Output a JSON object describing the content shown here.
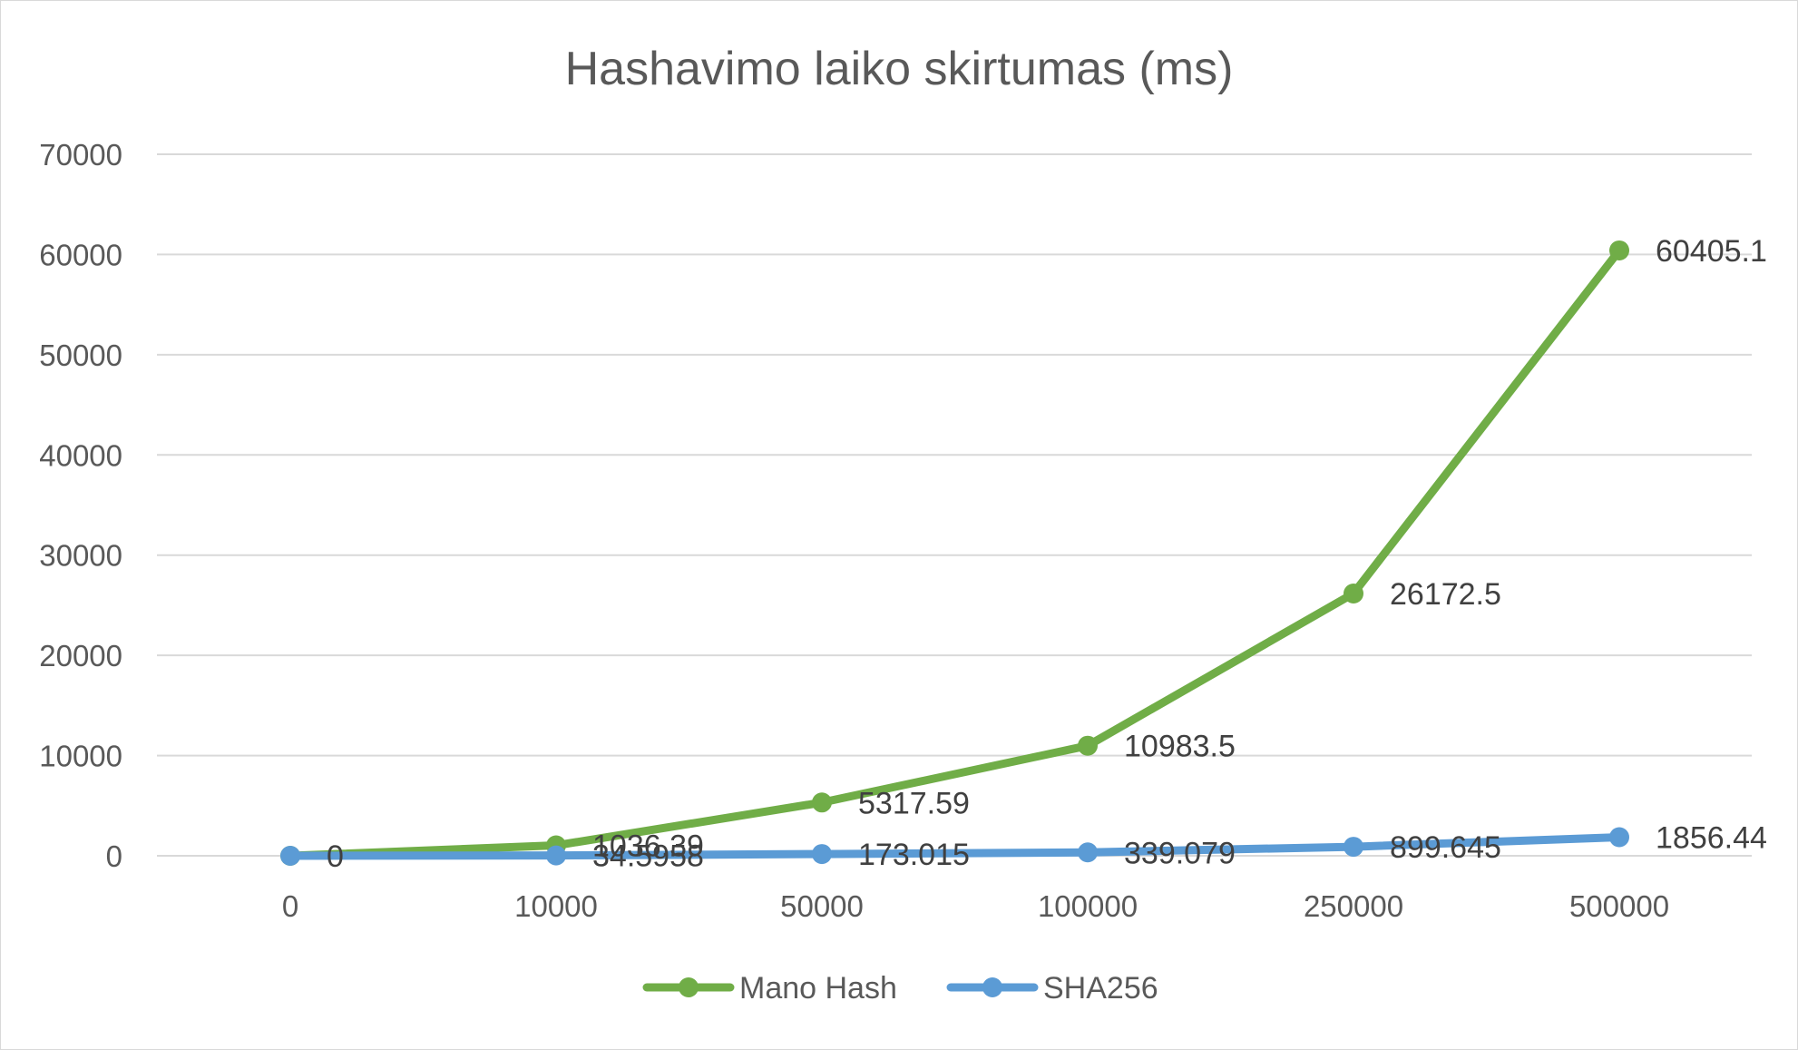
{
  "chart_data": {
    "type": "line",
    "title": "Hashavimo laiko skirtumas (ms)",
    "categories": [
      "0",
      "10000",
      "50000",
      "100000",
      "250000",
      "500000"
    ],
    "series": [
      {
        "name": "Mano Hash",
        "color": "#70ad47",
        "values": [
          0,
          1036.39,
          5317.59,
          10983.5,
          26172.5,
          60405.1
        ],
        "labels": [
          "",
          "1036.39",
          "5317.59",
          "10983.5",
          "26172.5",
          "60405.1"
        ]
      },
      {
        "name": "SHA256",
        "color": "#5b9bd5",
        "values": [
          0,
          34.5958,
          173.015,
          339.079,
          899.645,
          1856.44
        ],
        "labels": [
          "0",
          "34.5958",
          "173.015",
          "339.079",
          "899.645",
          "1856.44"
        ]
      }
    ],
    "ylim": [
      0,
      70000
    ],
    "yticks": [
      "0",
      "10000",
      "20000",
      "30000",
      "40000",
      "50000",
      "60000",
      "70000"
    ],
    "grid": true,
    "legend": "bottom"
  }
}
